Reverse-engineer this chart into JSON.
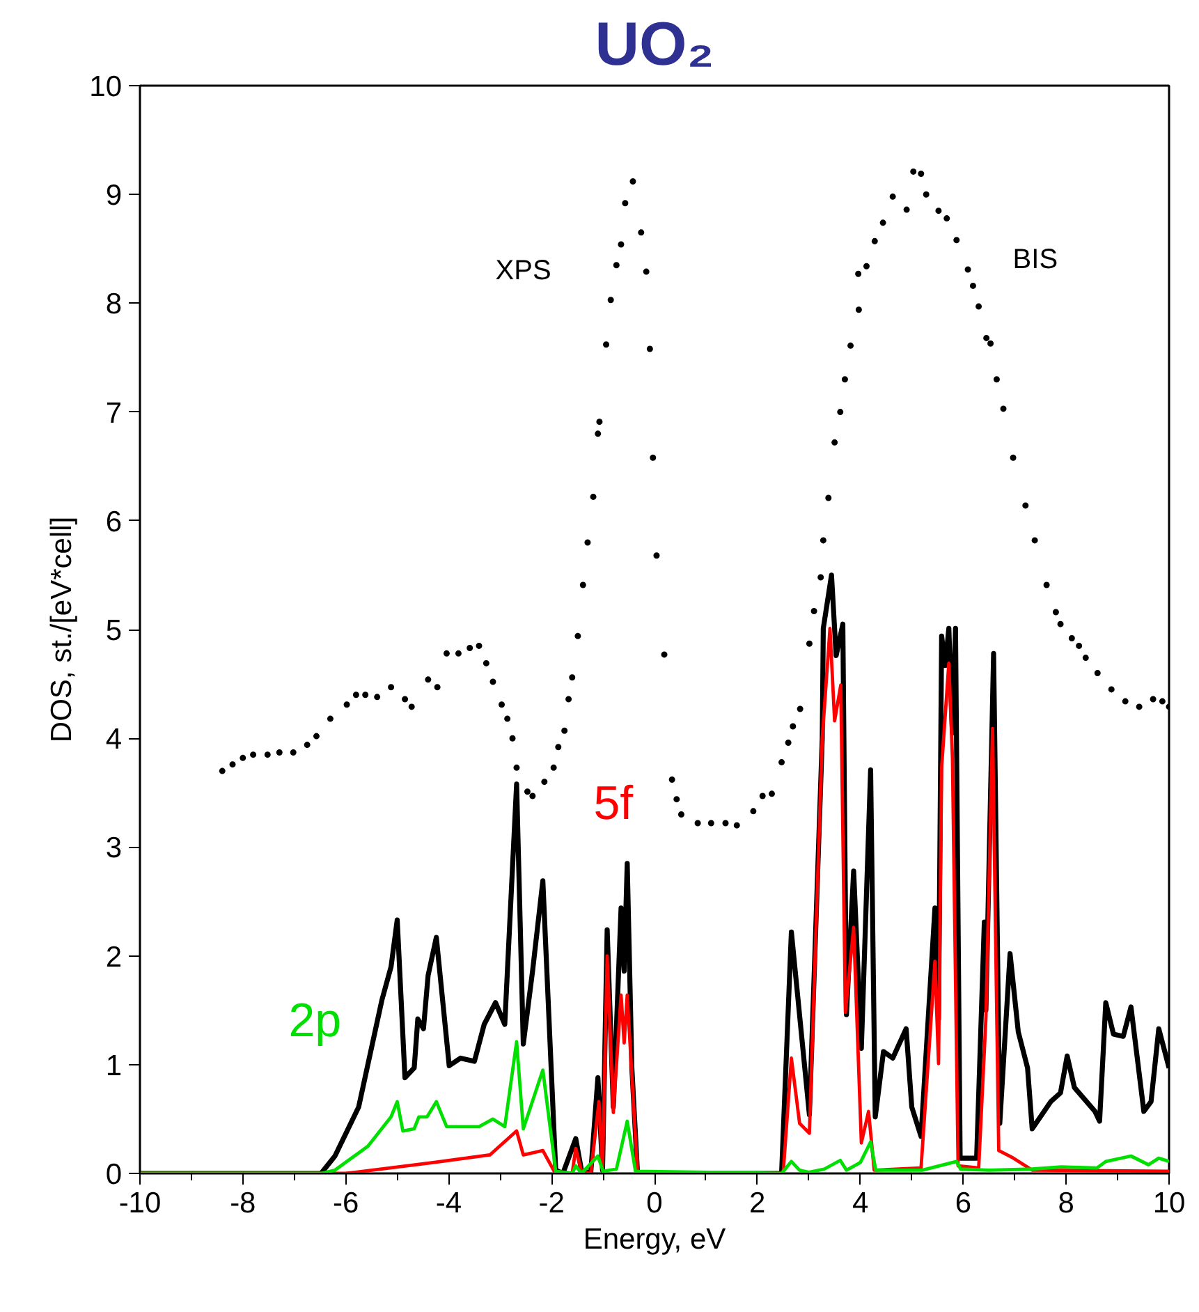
{
  "chart_data": {
    "type": "line",
    "title": "UO₂",
    "xlabel": "Energy, eV",
    "ylabel": "DOS, st./[eV*cell]",
    "xlim": [
      -10,
      10
    ],
    "ylim": [
      0,
      10
    ],
    "xticks": [
      -10,
      {
        "value": -9,
        "label": null
      },
      -8,
      {
        "value": -7,
        "label": null
      },
      -6,
      {
        "value": -5,
        "label": null
      },
      -4,
      {
        "value": -3,
        "label": null
      },
      -2,
      {
        "value": -1,
        "label": null
      },
      0,
      {
        "value": 1,
        "label": null
      },
      2,
      {
        "value": 3,
        "label": null
      },
      4,
      {
        "value": 5,
        "label": null
      },
      6,
      {
        "value": 7,
        "label": null
      },
      8,
      {
        "value": 9,
        "label": null
      },
      10
    ],
    "yticks": [
      0,
      1,
      2,
      3,
      4,
      5,
      6,
      7,
      8,
      9,
      10
    ],
    "grid": false,
    "line_style": "solid",
    "series": [
      {
        "color": "#000000",
        "x": [
          -10,
          -6.48,
          -6.21,
          -5.75,
          -5.3,
          -5.12,
          -5.0,
          -4.85,
          -4.67,
          -4.6,
          -4.49,
          -4.4,
          -4.24,
          -3.99,
          -3.77,
          -3.5,
          -3.31,
          -3.09,
          -2.91,
          -2.68,
          -2.55,
          -2.37,
          -2.17,
          -1.92,
          -1.78,
          -1.53,
          -1.42,
          -1.24,
          -1.1,
          -1.01,
          -0.92,
          -0.8,
          -0.65,
          -0.59,
          -0.53,
          -0.44,
          -0.33,
          2.47,
          2.66,
          3.01,
          3.26,
          3.28,
          3.44,
          3.53,
          3.66,
          3.73,
          3.87,
          4.02,
          4.2,
          4.29,
          4.45,
          4.63,
          4.89,
          5.0,
          5.18,
          5.45,
          5.52,
          5.58,
          5.65,
          5.72,
          5.79,
          5.85,
          5.94,
          6.26,
          6.41,
          6.44,
          6.59,
          6.71,
          6.91,
          7.07,
          7.25,
          7.34,
          7.7,
          7.89,
          8.02,
          8.16,
          8.56,
          8.65,
          8.77,
          8.92,
          9.11,
          9.26,
          9.51,
          9.65,
          9.8,
          10.0
        ],
        "values": [
          0,
          0,
          0.16,
          0.61,
          1.59,
          1.9,
          2.33,
          0.88,
          0.97,
          1.42,
          1.33,
          1.82,
          2.17,
          0.99,
          1.06,
          1.03,
          1.37,
          1.57,
          1.37,
          3.58,
          1.19,
          1.86,
          2.69,
          0.03,
          0,
          0.32,
          0.03,
          0,
          0.88,
          0.03,
          2.24,
          0.61,
          2.44,
          1.86,
          2.85,
          0.97,
          0,
          0,
          2.22,
          0.54,
          4.0,
          5.01,
          5.5,
          4.76,
          5.05,
          1.46,
          2.78,
          1.15,
          3.71,
          0.52,
          1.12,
          1.06,
          1.33,
          0.61,
          0.34,
          2.44,
          1.42,
          4.94,
          4.67,
          5.01,
          4.05,
          5.01,
          0.14,
          0.14,
          2.31,
          1.5,
          4.78,
          0.46,
          2.02,
          1.3,
          0.97,
          0.41,
          0.66,
          0.74,
          1.08,
          0.79,
          0.57,
          0.48,
          1.57,
          1.28,
          1.26,
          1.53,
          0.57,
          0.66,
          1.33,
          0.97
        ]
      },
      {
        "name": "5f",
        "color": "#ff0000",
        "x": [
          -10,
          -6.0,
          -4.3,
          -3.2,
          -2.68,
          -2.55,
          -2.17,
          -1.95,
          -1.6,
          -1.53,
          -1.42,
          -1.24,
          -1.08,
          -1.01,
          -0.92,
          -0.8,
          -0.65,
          -0.59,
          -0.53,
          -0.44,
          -0.33,
          2.5,
          2.66,
          2.82,
          3.01,
          3.26,
          3.41,
          3.5,
          3.62,
          3.71,
          3.87,
          4.02,
          4.16,
          4.27,
          5.18,
          5.45,
          5.52,
          5.58,
          5.72,
          5.79,
          5.9,
          6.3,
          6.44,
          6.57,
          6.69,
          6.94,
          7.34,
          10.0
        ],
        "values": [
          0,
          0,
          0.1,
          0.17,
          0.39,
          0.17,
          0.21,
          0.02,
          0,
          0.23,
          0.02,
          0,
          0.66,
          0.02,
          2.0,
          0.56,
          1.64,
          1.2,
          1.64,
          0.9,
          0,
          0,
          1.06,
          0.46,
          0.37,
          4.0,
          5.01,
          4.16,
          4.49,
          1.48,
          2.26,
          0.28,
          0.57,
          0.03,
          0.05,
          1.95,
          1.01,
          3.73,
          4.69,
          3.82,
          0.07,
          0.05,
          1.42,
          4.09,
          0.21,
          0.15,
          0.03,
          0.02
        ]
      },
      {
        "name": "2p",
        "color": "#00e000",
        "x": [
          -10,
          -6.48,
          -6.21,
          -5.57,
          -5.12,
          -5.0,
          -4.89,
          -4.67,
          -4.58,
          -4.42,
          -4.24,
          -4.04,
          -3.41,
          -3.14,
          -2.91,
          -2.68,
          -2.55,
          -2.17,
          -1.92,
          -1.6,
          -1.53,
          -1.42,
          -1.1,
          -1.0,
          -0.74,
          -0.53,
          -0.37,
          2.47,
          2.66,
          2.82,
          3.0,
          3.3,
          3.61,
          3.73,
          4.0,
          4.2,
          4.3,
          5.2,
          5.87,
          5.95,
          6.5,
          7.34,
          7.9,
          8.6,
          8.77,
          9.26,
          9.6,
          9.8,
          10.0
        ],
        "values": [
          0,
          0,
          0.03,
          0.25,
          0.52,
          0.66,
          0.39,
          0.41,
          0.52,
          0.52,
          0.66,
          0.43,
          0.43,
          0.5,
          0.43,
          1.21,
          0.41,
          0.95,
          0.02,
          0,
          0.07,
          0,
          0.16,
          0.02,
          0.04,
          0.48,
          0.02,
          0,
          0.11,
          0.03,
          0.01,
          0.04,
          0.12,
          0.03,
          0.1,
          0.29,
          0.03,
          0.03,
          0.11,
          0.04,
          0.03,
          0.04,
          0.06,
          0.05,
          0.11,
          0.16,
          0.08,
          0.14,
          0.11
        ]
      },
      {
        "type": "scatter",
        "name": "XPS",
        "color": "#000000",
        "marker": "circle",
        "x": [
          -8.4,
          -8.2,
          -8.0,
          -7.8,
          -7.52,
          -7.29,
          -7.02,
          -6.75,
          -6.57,
          -6.3,
          -5.98,
          -5.8,
          -5.62,
          -5.39,
          -5.12,
          -4.85,
          -4.72,
          -4.4,
          -4.22,
          -4.04,
          -3.81,
          -3.59,
          -3.41,
          -3.27,
          -3.14,
          -2.97,
          -2.86,
          -2.76,
          -2.68,
          -2.47,
          -2.37,
          -2.14,
          -1.96,
          -1.87,
          -1.75,
          -1.67,
          -1.6,
          -1.49,
          -1.39,
          -1.3,
          -1.19,
          -1.1,
          -1.07,
          -0.94,
          -0.85,
          -0.74,
          -0.65,
          -0.57,
          -0.42,
          -0.26,
          -0.16,
          -0.09,
          -0.03,
          0.04,
          0.19,
          0.34,
          0.43,
          0.52,
          0.84,
          1.1,
          1.38,
          1.6
        ],
        "values": [
          3.7,
          3.76,
          3.82,
          3.85,
          3.85,
          3.87,
          3.87,
          3.94,
          4.02,
          4.18,
          4.31,
          4.4,
          4.4,
          4.38,
          4.47,
          4.36,
          4.29,
          4.54,
          4.47,
          4.78,
          4.78,
          4.83,
          4.85,
          4.69,
          4.52,
          4.31,
          4.18,
          4.0,
          3.73,
          3.51,
          3.47,
          3.6,
          3.73,
          3.92,
          4.07,
          4.36,
          4.56,
          4.94,
          5.41,
          5.8,
          6.22,
          6.8,
          6.91,
          7.62,
          8.03,
          8.35,
          8.54,
          8.92,
          9.12,
          8.65,
          8.29,
          7.58,
          6.58,
          5.68,
          4.77,
          3.62,
          3.44,
          3.3,
          3.22,
          3.22,
          3.22,
          3.2
        ]
      },
      {
        "type": "scatter",
        "name": "BIS",
        "color": "#000000",
        "marker": "circle",
        "x": [
          1.92,
          2.1,
          2.28,
          2.47,
          2.6,
          2.69,
          2.83,
          3.01,
          3.1,
          3.23,
          3.28,
          3.38,
          3.5,
          3.61,
          3.7,
          3.81,
          3.97,
          3.96,
          4.12,
          4.28,
          4.44,
          4.63,
          4.9,
          5.03,
          5.18,
          5.28,
          5.52,
          5.68,
          5.87,
          6.09,
          6.19,
          6.3,
          6.45,
          6.53,
          6.65,
          6.78,
          6.97,
          7.21,
          7.39,
          7.62,
          7.8,
          7.89,
          8.11,
          8.25,
          8.38,
          8.61,
          8.88,
          9.15,
          9.42,
          9.69,
          9.87,
          10.0
        ],
        "values": [
          3.33,
          3.47,
          3.49,
          3.78,
          3.96,
          4.11,
          4.27,
          4.87,
          5.17,
          5.48,
          5.82,
          6.21,
          6.72,
          7.0,
          7.3,
          7.61,
          7.94,
          8.27,
          8.34,
          8.57,
          8.74,
          8.98,
          8.86,
          9.21,
          9.19,
          9.0,
          8.85,
          8.78,
          8.58,
          8.31,
          8.16,
          7.97,
          7.68,
          7.63,
          7.3,
          7.03,
          6.58,
          6.14,
          5.82,
          5.41,
          5.16,
          5.05,
          4.92,
          4.85,
          4.74,
          4.6,
          4.45,
          4.34,
          4.29,
          4.36,
          4.34,
          4.29
        ]
      }
    ]
  }
}
